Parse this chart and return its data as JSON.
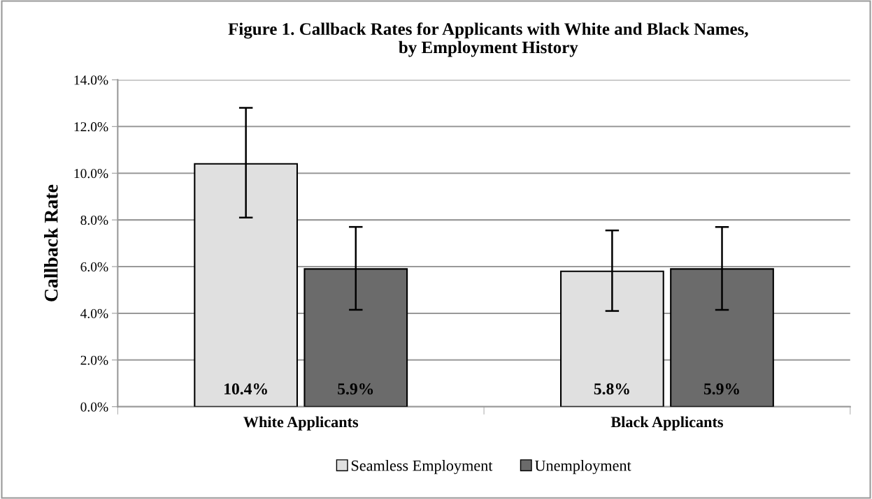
{
  "chart_data": {
    "type": "bar",
    "title": "Figure 1. Callback Rates for Applicants with White and Black Names,\nby Employment History",
    "ylabel": "Callback Rate",
    "categories": [
      "White Applicants",
      "Black Applicants"
    ],
    "series": [
      {
        "name": "Seamless Employment",
        "color": "#e0e0e0",
        "values": [
          10.4,
          5.8
        ],
        "errors": [
          [
            8.1,
            12.8
          ],
          [
            4.1,
            7.55
          ]
        ],
        "value_labels": [
          "10.4%",
          "5.8%"
        ]
      },
      {
        "name": "Unemployment",
        "color": "#6b6b6b",
        "values": [
          5.9,
          5.9
        ],
        "errors": [
          [
            4.15,
            7.7
          ],
          [
            4.15,
            7.7
          ]
        ],
        "value_labels": [
          "5.9%",
          "5.9%"
        ]
      }
    ],
    "ylim": [
      0,
      14
    ],
    "yticks": [
      {
        "value": 0,
        "label": "0.0%"
      },
      {
        "value": 2,
        "label": "2.0%"
      },
      {
        "value": 4,
        "label": "4.0%"
      },
      {
        "value": 6,
        "label": "6.0%"
      },
      {
        "value": 8,
        "label": "8.0%"
      },
      {
        "value": 10,
        "label": "10.0%"
      },
      {
        "value": 12,
        "label": "12.0%"
      },
      {
        "value": 14,
        "label": "14.0%"
      }
    ],
    "grid": "y",
    "legend": "bottom"
  }
}
